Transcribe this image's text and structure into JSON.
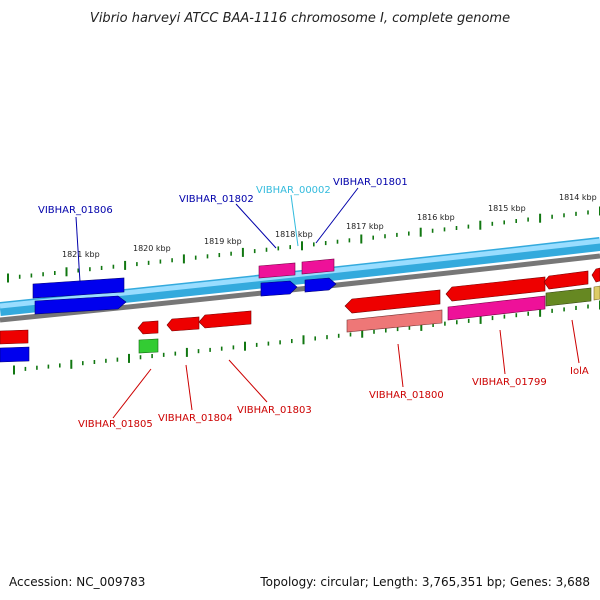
{
  "title": "Vibrio harveyi ATCC BAA-1116 chromosome I, complete genome",
  "footer": {
    "accession": "Accession: NC_009783",
    "summary": "Topology: circular; Length: 3,765,351 bp; Genes: 3,688"
  },
  "kbp_labels": [
    "1821 kbp",
    "1820 kbp",
    "1819 kbp",
    "1818 kbp",
    "1817 kbp",
    "1816 kbp",
    "1815 kbp",
    "1814 kbp"
  ],
  "gene_labels": {
    "g01806": "VIBHAR_01806",
    "g01802": "VIBHAR_01802",
    "g00002": "VIBHAR_00002",
    "g01801": "VIBHAR_01801",
    "g01805": "VIBHAR_01805",
    "g01804": "VIBHAR_01804",
    "g01803": "VIBHAR_01803",
    "g01800": "VIBHAR_01800",
    "g01799": "VIBHAR_01799",
    "iolA": "IolA"
  },
  "colors": {
    "backbone": "#33aadd",
    "backbone_light": "#99ddff",
    "backbone_gray": "#777777",
    "tick": "#117711",
    "blue_gene": "#0000ee",
    "magenta_gene": "#ee1199",
    "red_gene": "#ee0000",
    "pink_gene": "#ee7777",
    "olive_gene": "#668822",
    "green_gene": "#33cc33",
    "label_blue": "#0000aa",
    "label_cyan": "#33bbdd",
    "label_red": "#cc0000"
  }
}
